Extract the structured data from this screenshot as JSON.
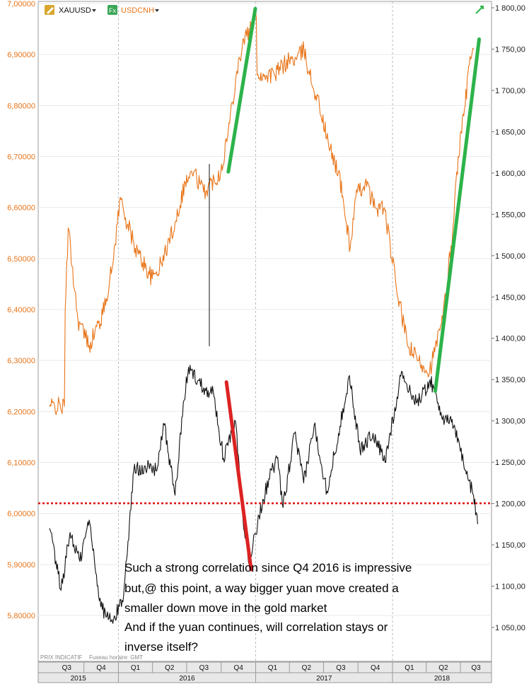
{
  "legend": {
    "items": [
      {
        "name": "XAUUSD",
        "color": "#111111",
        "icon": "pencil-icon"
      },
      {
        "name": "USDCNH",
        "color": "#e8751a",
        "icon": "fx-icon"
      }
    ]
  },
  "footer": {
    "prix": "PRIX INDICATIF",
    "fuseau": "Fuseau horaire: GMT"
  },
  "annotation": {
    "lines": [
      "Such a strong correlation since Q4 2016 is impressive",
      "but,@ this point, a way bigger yuan move created a",
      "smaller down move in the gold market",
      "And if the yuan continues, will correlation stays or",
      "inverse itself?"
    ]
  },
  "chart_data": {
    "type": "line",
    "left_axis": {
      "label": "",
      "ticks": [
        "7,00000",
        "6,90000",
        "6,80000",
        "6,70000",
        "6,60000",
        "6,50000",
        "6,40000",
        "6,30000",
        "6,20000",
        "6,10000",
        "6,00000",
        "5,90000",
        "5,80000"
      ],
      "range": [
        5.74,
        7.0
      ],
      "color": "#e8751a"
    },
    "right_axis": {
      "label": "",
      "ticks": [
        "1 800,00",
        "1 750,00",
        "1 700,00",
        "1 650,00",
        "1 600,00",
        "1 550,00",
        "1 500,00",
        "1 450,00",
        "1 400,00",
        "1 350,00",
        "1 300,00",
        "1 250,00",
        "1 200,00",
        "1 150,00",
        "1 100,00",
        "1 050,00"
      ],
      "range": [
        1020,
        1800
      ]
    },
    "x_quarters": [
      "Q3",
      "Q4",
      "Q1",
      "Q2",
      "Q3",
      "Q4",
      "Q1",
      "Q2",
      "Q3",
      "Q4",
      "Q1",
      "Q2",
      "Q3"
    ],
    "x_years": [
      "2015",
      "2016",
      "2017",
      "2018"
    ],
    "grid": true,
    "series": [
      {
        "name": "USDCNH",
        "axis": "left",
        "color": "#e8751a",
        "x": [
          "2015-07-01",
          "2015-08-10",
          "2015-08-12",
          "2015-08-20",
          "2015-09-15",
          "2015-10-15",
          "2015-11-20",
          "2015-12-15",
          "2016-01-06",
          "2016-01-20",
          "2016-02-15",
          "2016-03-31",
          "2016-04-25",
          "2016-05-31",
          "2016-06-27",
          "2016-07-20",
          "2016-08-15",
          "2016-09-30",
          "2016-10-20",
          "2016-11-10",
          "2016-11-30",
          "2016-12-20",
          "2017-01-03",
          "2017-01-05",
          "2017-01-25",
          "2017-02-20",
          "2017-03-31",
          "2017-04-20",
          "2017-05-10",
          "2017-05-25",
          "2017-06-20",
          "2017-07-15",
          "2017-08-10",
          "2017-08-25",
          "2017-09-10",
          "2017-09-25",
          "2017-10-20",
          "2017-11-15",
          "2017-12-10",
          "2018-01-10",
          "2018-02-10",
          "2018-03-10",
          "2018-04-10",
          "2018-05-15",
          "2018-06-10",
          "2018-06-25",
          "2018-07-10",
          "2018-07-25",
          "2018-08-05"
        ],
        "values": [
          6.21,
          6.21,
          6.4,
          6.56,
          6.38,
          6.33,
          6.39,
          6.48,
          6.62,
          6.58,
          6.52,
          6.46,
          6.49,
          6.57,
          6.65,
          6.67,
          6.63,
          6.67,
          6.75,
          6.86,
          6.93,
          6.95,
          6.97,
          6.86,
          6.86,
          6.86,
          6.89,
          6.89,
          6.91,
          6.86,
          6.8,
          6.72,
          6.67,
          6.6,
          6.52,
          6.62,
          6.65,
          6.6,
          6.6,
          6.45,
          6.33,
          6.3,
          6.28,
          6.38,
          6.55,
          6.7,
          6.78,
          6.88,
          6.91
        ]
      },
      {
        "name": "XAUUSD",
        "axis": "right",
        "color": "#111111",
        "x": [
          "2015-07-01",
          "2015-08-01",
          "2015-08-25",
          "2015-09-20",
          "2015-10-15",
          "2015-11-15",
          "2015-12-17",
          "2016-01-15",
          "2016-02-11",
          "2016-03-10",
          "2016-04-10",
          "2016-05-02",
          "2016-05-31",
          "2016-06-24",
          "2016-07-06",
          "2016-08-15",
          "2016-09-10",
          "2016-10-07",
          "2016-11-08",
          "2016-11-30",
          "2016-12-15",
          "2017-01-10",
          "2017-02-05",
          "2017-02-27",
          "2017-03-15",
          "2017-04-15",
          "2017-05-09",
          "2017-06-06",
          "2017-07-10",
          "2017-08-10",
          "2017-09-08",
          "2017-10-06",
          "2017-11-10",
          "2017-12-12",
          "2018-01-25",
          "2018-02-20",
          "2018-03-15",
          "2018-04-11",
          "2018-05-20",
          "2018-06-15",
          "2018-07-15",
          "2018-08-05",
          "2018-08-16"
        ],
        "values": [
          1170,
          1095,
          1165,
          1130,
          1180,
          1075,
          1055,
          1090,
          1240,
          1245,
          1240,
          1295,
          1210,
          1325,
          1365,
          1340,
          1335,
          1255,
          1300,
          1170,
          1130,
          1185,
          1230,
          1255,
          1195,
          1285,
          1225,
          1295,
          1215,
          1285,
          1355,
          1265,
          1285,
          1250,
          1360,
          1330,
          1325,
          1350,
          1300,
          1295,
          1240,
          1210,
          1175
        ]
      }
    ],
    "reference_line": {
      "axis": "left",
      "value": 6.02,
      "style": "dotted",
      "color": "#dd1111"
    },
    "trend_lines": [
      {
        "color": "#2db34a",
        "x": [
          "2016-10-20",
          "2016-12-31"
        ],
        "axis": "left",
        "values": [
          6.67,
          6.99
        ]
      },
      {
        "color": "#dd2222",
        "x": [
          "2016-10-15",
          "2016-12-20"
        ],
        "axis": "right",
        "values": [
          1347,
          1120
        ]
      },
      {
        "color": "#2db34a",
        "x": [
          "2018-04-25",
          "2018-08-20"
        ],
        "axis": "left",
        "values": [
          6.24,
          6.93
        ]
      }
    ]
  }
}
